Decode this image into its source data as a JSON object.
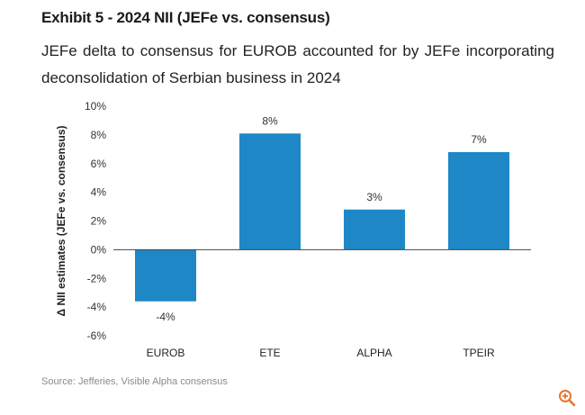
{
  "header": {
    "title": "Exhibit 5 - 2024 NII (JEFe vs. consensus)",
    "subtitle": "JEFe delta to consensus for EUROB accounted for by JEFe incorporating deconsolidation of Serbian business in 2024"
  },
  "footer": {
    "source": "Source: Jefferies, Visible Alpha consensus",
    "zoom_icon": "zoom-in-icon"
  },
  "colors": {
    "bar": "#1E88C7",
    "zoom": "#E8742C"
  },
  "chart_data": {
    "type": "bar",
    "title": "",
    "xlabel": "",
    "ylabel": "Δ NII estimates (JEFe vs. consensus)",
    "categories": [
      "EUROB",
      "ETE",
      "ALPHA",
      "TPEIR"
    ],
    "values": [
      -3.6,
      8.1,
      2.8,
      6.8
    ],
    "data_labels": [
      "-4%",
      "8%",
      "3%",
      "7%"
    ],
    "ylim": [
      -6,
      10
    ],
    "yticks": [
      10,
      8,
      6,
      4,
      2,
      0,
      -2,
      -4,
      -6
    ],
    "ytick_labels": [
      "10%",
      "8%",
      "6%",
      "4%",
      "2%",
      "0%",
      "-2%",
      "-4%",
      "-6%"
    ],
    "grid": false,
    "legend": "none"
  }
}
